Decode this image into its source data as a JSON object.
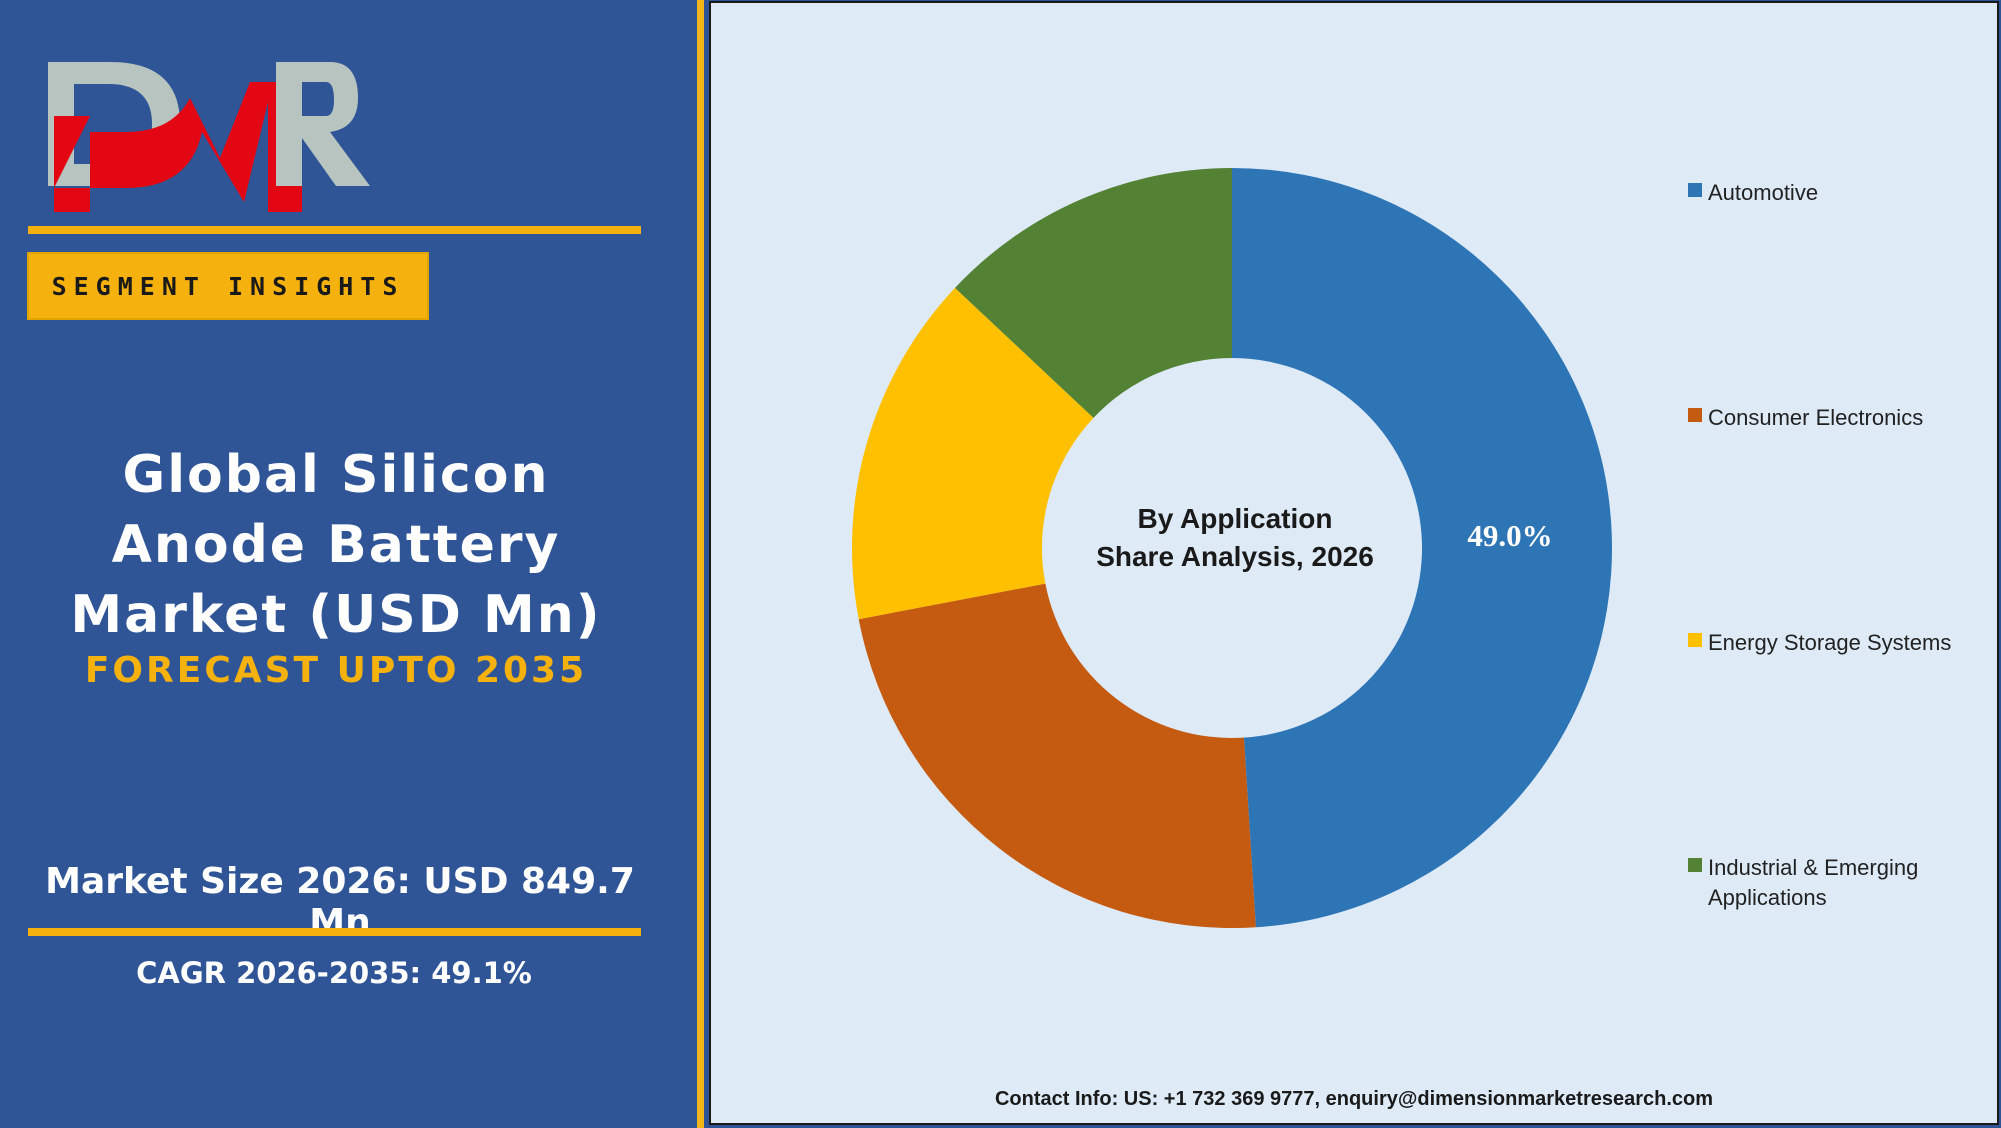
{
  "logo": {
    "text": "DMR",
    "colors": {
      "red": "#e30613",
      "grey": "#b8c4c0"
    }
  },
  "sidebar": {
    "badge": "SEGMENT INSIGHTS",
    "title": "Global Silicon Anode Battery Market (USD Mn)",
    "subtitle": "FORECAST UPTO 2035",
    "market_size": "Market Size 2026: USD 849.7 Mn",
    "cagr": "CAGR 2026-2035: 49.1%"
  },
  "chart_data": {
    "type": "pie",
    "donut": true,
    "center_title": "By Application",
    "center_subtitle": "Share Analysis, 2026",
    "categories": [
      "Automotive",
      "Consumer Electronics",
      "Energy Storage Systems",
      "Industrial & Emerging Applications"
    ],
    "values": [
      49.0,
      23.0,
      15.0,
      13.0
    ],
    "colors": [
      "#2e75b6",
      "#c55a11",
      "#ffc000",
      "#548235"
    ],
    "data_labels": [
      "49.0%",
      "",
      "",
      ""
    ],
    "legend_position": "right"
  },
  "footer": {
    "contact": "Contact Info: US: +1 732 369 9777, enquiry@dimensionmarketresearch.com"
  }
}
